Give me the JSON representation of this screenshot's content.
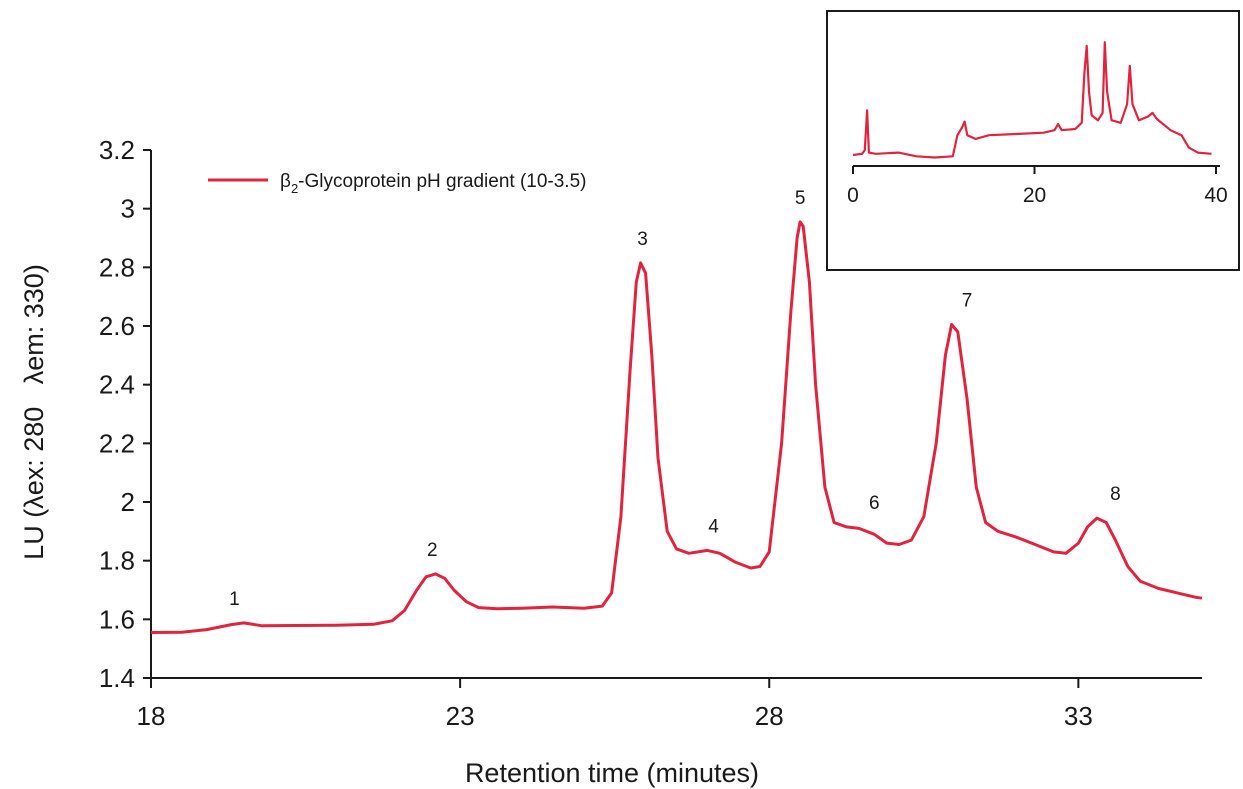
{
  "chart_data": [
    {
      "type": "line",
      "title": "",
      "xlabel": "Retention time (minutes)",
      "ylabel": "LU (λex: 280   λem: 330)",
      "xlim": [
        18,
        35
      ],
      "ylim": [
        1.4,
        3.2
      ],
      "x_ticks": [
        "18",
        "23",
        "28",
        "33"
      ],
      "y_ticks": [
        "1.4",
        "1.6",
        "1.8",
        "2",
        "2.2",
        "2.4",
        "2.6",
        "2.8",
        "3",
        "3.2"
      ],
      "grid": false,
      "legend_position": "top-left",
      "series": [
        {
          "name": "β2-Glycoprotein pH gradient (10-3.5)",
          "legend_prefix": "β",
          "legend_subscript": "2",
          "legend_suffix": "-Glycoprotein pH gradient (10-3.5)",
          "color": "#e0243f",
          "points": [
            [
              18.0,
              1.555
            ],
            [
              18.5,
              1.556
            ],
            [
              18.9,
              1.565
            ],
            [
              19.3,
              1.582
            ],
            [
              19.5,
              1.588
            ],
            [
              19.8,
              1.578
            ],
            [
              20.3,
              1.579
            ],
            [
              21.0,
              1.58
            ],
            [
              21.6,
              1.583
            ],
            [
              21.9,
              1.595
            ],
            [
              22.1,
              1.63
            ],
            [
              22.3,
              1.7
            ],
            [
              22.45,
              1.745
            ],
            [
              22.6,
              1.755
            ],
            [
              22.75,
              1.74
            ],
            [
              22.9,
              1.7
            ],
            [
              23.1,
              1.66
            ],
            [
              23.3,
              1.64
            ],
            [
              23.6,
              1.636
            ],
            [
              24.0,
              1.638
            ],
            [
              24.5,
              1.642
            ],
            [
              25.0,
              1.638
            ],
            [
              25.3,
              1.645
            ],
            [
              25.45,
              1.69
            ],
            [
              25.6,
              1.95
            ],
            [
              25.75,
              2.45
            ],
            [
              25.85,
              2.75
            ],
            [
              25.92,
              2.815
            ],
            [
              26.0,
              2.78
            ],
            [
              26.1,
              2.5
            ],
            [
              26.2,
              2.15
            ],
            [
              26.35,
              1.9
            ],
            [
              26.5,
              1.84
            ],
            [
              26.7,
              1.825
            ],
            [
              27.0,
              1.835
            ],
            [
              27.2,
              1.825
            ],
            [
              27.45,
              1.795
            ],
            [
              27.7,
              1.775
            ],
            [
              27.85,
              1.78
            ],
            [
              28.0,
              1.83
            ],
            [
              28.2,
              2.2
            ],
            [
              28.35,
              2.65
            ],
            [
              28.45,
              2.9
            ],
            [
              28.5,
              2.955
            ],
            [
              28.55,
              2.94
            ],
            [
              28.65,
              2.75
            ],
            [
              28.75,
              2.4
            ],
            [
              28.9,
              2.05
            ],
            [
              29.05,
              1.93
            ],
            [
              29.25,
              1.915
            ],
            [
              29.45,
              1.91
            ],
            [
              29.7,
              1.89
            ],
            [
              29.9,
              1.86
            ],
            [
              30.1,
              1.855
            ],
            [
              30.3,
              1.87
            ],
            [
              30.5,
              1.95
            ],
            [
              30.7,
              2.2
            ],
            [
              30.85,
              2.5
            ],
            [
              30.95,
              2.605
            ],
            [
              31.05,
              2.58
            ],
            [
              31.2,
              2.35
            ],
            [
              31.35,
              2.05
            ],
            [
              31.5,
              1.93
            ],
            [
              31.7,
              1.9
            ],
            [
              32.0,
              1.88
            ],
            [
              32.3,
              1.855
            ],
            [
              32.6,
              1.83
            ],
            [
              32.8,
              1.825
            ],
            [
              33.0,
              1.86
            ],
            [
              33.15,
              1.915
            ],
            [
              33.3,
              1.945
            ],
            [
              33.45,
              1.93
            ],
            [
              33.6,
              1.87
            ],
            [
              33.8,
              1.78
            ],
            [
              34.0,
              1.73
            ],
            [
              34.3,
              1.705
            ],
            [
              34.6,
              1.69
            ],
            [
              34.9,
              1.675
            ],
            [
              35.0,
              1.672
            ]
          ]
        }
      ],
      "annotations": [
        {
          "text": "1",
          "x": 19.35,
          "y": 1.588
        },
        {
          "text": "2",
          "x": 22.55,
          "y": 1.755
        },
        {
          "text": "3",
          "x": 25.95,
          "y": 2.815
        },
        {
          "text": "4",
          "x": 27.1,
          "y": 1.835
        },
        {
          "text": "5",
          "x": 28.5,
          "y": 2.955
        },
        {
          "text": "6",
          "x": 29.7,
          "y": 1.915
        },
        {
          "text": "7",
          "x": 31.2,
          "y": 2.605
        },
        {
          "text": "8",
          "x": 33.6,
          "y": 1.945
        }
      ]
    },
    {
      "type": "line",
      "title": "",
      "xlabel": "",
      "ylabel": "",
      "xlim": [
        0,
        40
      ],
      "ylim": [
        0,
        1
      ],
      "x_ticks": [
        "0",
        "20",
        "40"
      ],
      "grid": false,
      "series": [
        {
          "name": "",
          "color": "#e0243f",
          "points": [
            [
              0.0,
              0.04
            ],
            [
              1.0,
              0.05
            ],
            [
              1.3,
              0.08
            ],
            [
              1.55,
              0.4
            ],
            [
              1.75,
              0.06
            ],
            [
              2.5,
              0.05
            ],
            [
              5.0,
              0.06
            ],
            [
              7.0,
              0.03
            ],
            [
              9.0,
              0.02
            ],
            [
              11.0,
              0.03
            ],
            [
              11.5,
              0.2
            ],
            [
              12.0,
              0.26
            ],
            [
              12.3,
              0.31
            ],
            [
              12.6,
              0.2
            ],
            [
              13.5,
              0.17
            ],
            [
              15.0,
              0.2
            ],
            [
              18.0,
              0.21
            ],
            [
              21.0,
              0.22
            ],
            [
              22.2,
              0.24
            ],
            [
              22.6,
              0.29
            ],
            [
              23.0,
              0.24
            ],
            [
              24.5,
              0.25
            ],
            [
              25.2,
              0.3
            ],
            [
              25.5,
              0.7
            ],
            [
              25.75,
              0.92
            ],
            [
              26.0,
              0.55
            ],
            [
              26.3,
              0.36
            ],
            [
              27.0,
              0.32
            ],
            [
              27.5,
              0.38
            ],
            [
              27.75,
              0.95
            ],
            [
              28.0,
              0.55
            ],
            [
              28.5,
              0.32
            ],
            [
              29.5,
              0.3
            ],
            [
              30.2,
              0.45
            ],
            [
              30.5,
              0.76
            ],
            [
              30.8,
              0.45
            ],
            [
              31.5,
              0.32
            ],
            [
              32.5,
              0.35
            ],
            [
              33.0,
              0.38
            ],
            [
              33.5,
              0.33
            ],
            [
              35.0,
              0.24
            ],
            [
              36.2,
              0.2
            ],
            [
              37.0,
              0.1
            ],
            [
              38.0,
              0.06
            ],
            [
              39.5,
              0.05
            ]
          ]
        }
      ]
    }
  ]
}
